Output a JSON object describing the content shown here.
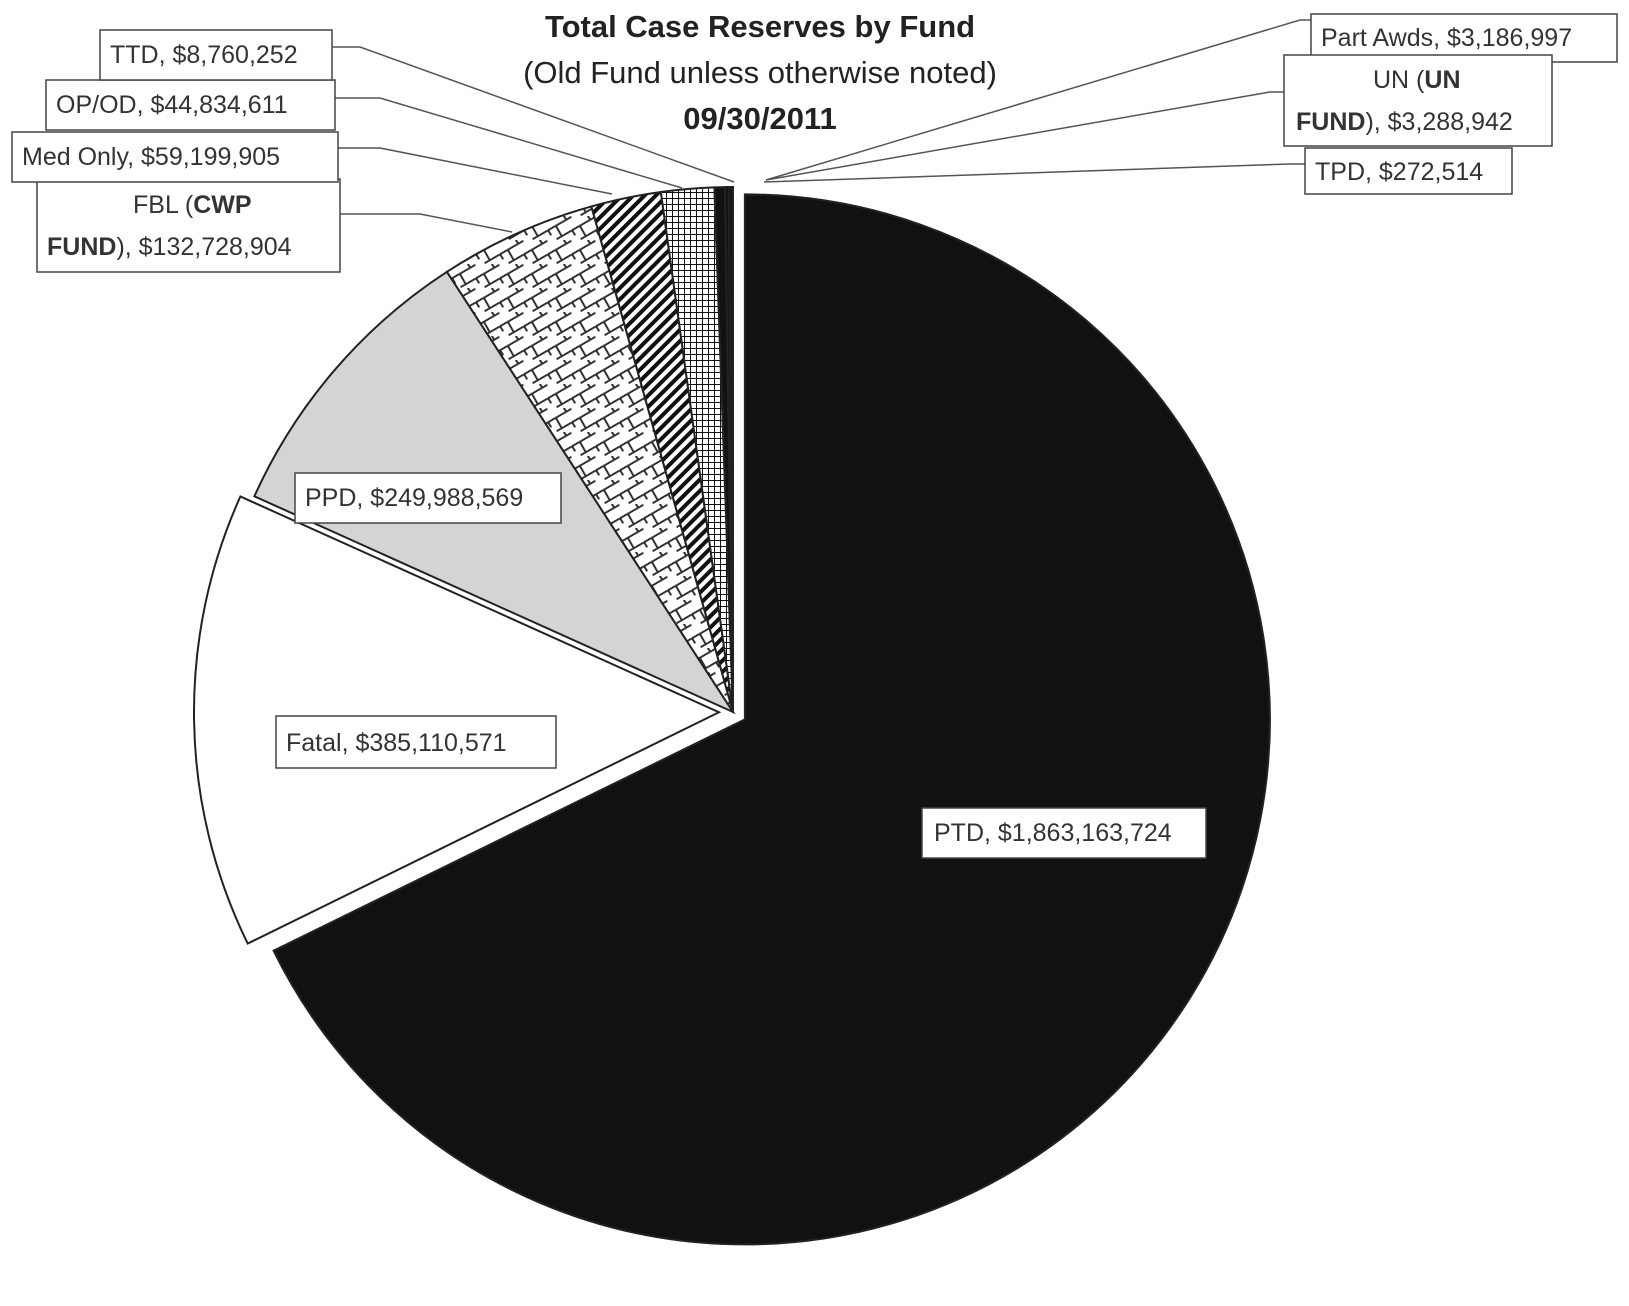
{
  "title": {
    "line1": "Total Case Reserves by Fund",
    "line2": "(Old Fund unless otherwise noted)",
    "line3": "09/30/2011"
  },
  "chart_data": {
    "type": "pie",
    "title": "Total Case Reserves by Fund",
    "subtitle": "(Old Fund unless otherwise noted) 09/30/2011",
    "slices": [
      {
        "label": "PTD",
        "value": 1863163724,
        "display": "$1,863,163,724",
        "fill": "#111111"
      },
      {
        "label": "Fatal",
        "value": 385110571,
        "display": "$385,110,571",
        "fill": "#ffffff"
      },
      {
        "label": "PPD",
        "value": 249988569,
        "display": "$249,988,569",
        "fill": "#d4d4d4"
      },
      {
        "label": "FBL (CWP FUND)",
        "value": 132728904,
        "display": "$132,728,904",
        "fill": "pattern:brick"
      },
      {
        "label": "Med Only",
        "value": 59199905,
        "display": "$59,199,905",
        "fill": "pattern:diagonal"
      },
      {
        "label": "OP/OD",
        "value": 44834611,
        "display": "$44,834,611",
        "fill": "pattern:grid"
      },
      {
        "label": "TTD",
        "value": 8760252,
        "display": "$8,760,252",
        "fill": "#111111"
      },
      {
        "label": "Part Awds",
        "value": 3186997,
        "display": "$3,186,997",
        "fill": "#111111"
      },
      {
        "label": "UN (UN FUND)",
        "value": 3288942,
        "display": "$3,288,942",
        "fill": "#111111"
      },
      {
        "label": "TPD",
        "value": 272514,
        "display": "$272,514",
        "fill": "#111111"
      }
    ]
  },
  "labels": {
    "ptd": "PTD, $1,863,163,724",
    "fatal": "Fatal, $385,110,571",
    "ppd": "PPD, $249,988,569",
    "fbl_prefix": "FBL (",
    "fbl_bold1": "CWP",
    "fbl_bold2": "FUND",
    "fbl_suffix": "), $132,728,904",
    "med_only": "Med Only, $59,199,905",
    "op_od": "OP/OD, $44,834,611",
    "ttd": "TTD, $8,760,252",
    "part_awds": "Part Awds, $3,186,997",
    "un_prefix": "UN (",
    "un_bold1": "UN",
    "un_bold2": "FUND",
    "un_suffix": "), $3,288,942",
    "tpd": "TPD, $272,514"
  }
}
